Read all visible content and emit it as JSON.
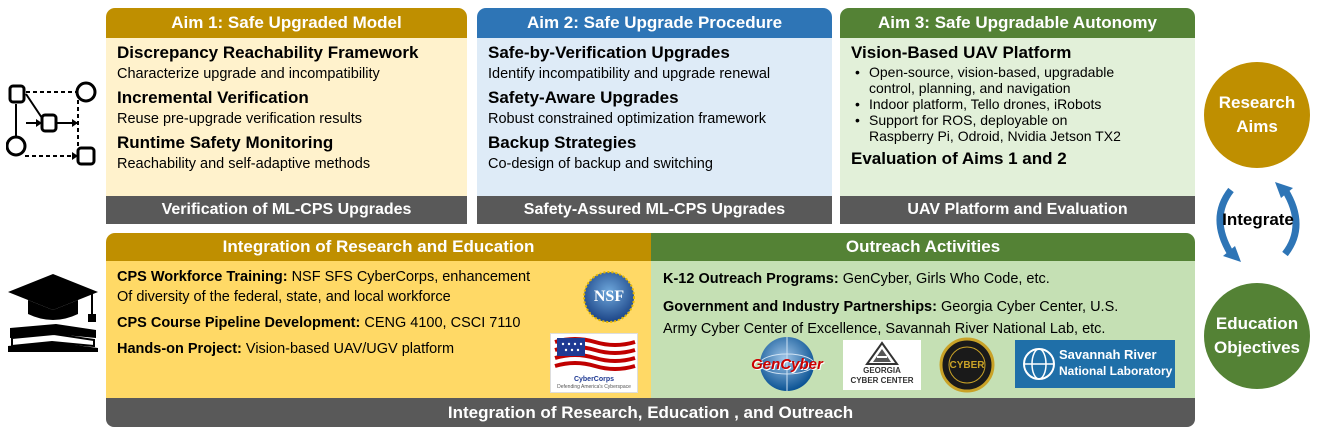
{
  "aims": [
    {
      "header": "Aim 1: Safe Upgraded Model",
      "items": [
        {
          "title": "Discrepancy Reachability Framework",
          "desc": "Characterize upgrade and incompatibility"
        },
        {
          "title": "Incremental Verification",
          "desc": "Reuse pre-upgrade verification results"
        },
        {
          "title": "Runtime Safety Monitoring",
          "desc": "Reachability and self-adaptive methods"
        }
      ],
      "footer": "Verification of ML-CPS Upgrades"
    },
    {
      "header": "Aim 2: Safe Upgrade Procedure",
      "items": [
        {
          "title": "Safe-by-Verification Upgrades",
          "desc": "Identify incompatibility and upgrade renewal"
        },
        {
          "title": "Safety-Aware Upgrades",
          "desc": "Robust constrained optimization framework"
        },
        {
          "title": "Backup Strategies",
          "desc": "Co-design of backup and switching"
        }
      ],
      "footer": "Safety-Assured ML-CPS Upgrades"
    },
    {
      "header": "Aim 3: Safe Upgradable Autonomy",
      "title": "Vision-Based UAV Platform",
      "bullets": [
        [
          "Open-source, vision-based, upgradable",
          "control, planning, and navigation"
        ],
        [
          "Indoor platform, Tello drones, iRobots"
        ],
        [
          "Support for ROS, deployable on",
          "Raspberry Pi, Odroid, Nvidia Jetson TX2"
        ]
      ],
      "title2": "Evaluation of Aims 1 and 2",
      "footer": "UAV Platform and Evaluation"
    }
  ],
  "integration": {
    "header": "Integration of Research and Education",
    "lines": [
      {
        "bold": "CPS Workforce Training:",
        "text": " NSF SFS CyberCorps, enhancement"
      },
      {
        "bold": "",
        "text": "Of diversity of the federal, state, and local workforce"
      },
      {
        "bold": "CPS Course Pipeline Development:",
        "text": " CENG 4100, CSCI 7110"
      },
      {
        "bold": "Hands-on Project:",
        "text": " Vision-based UAV/UGV platform"
      }
    ],
    "nsf_logo_text": "NSF",
    "cybercorps_text": "CyberCorps",
    "cybercorps_tagline": "Defending America's Cyberspace"
  },
  "outreach": {
    "header": "Outreach Activities",
    "lines": [
      {
        "bold": "K-12 Outreach Programs:",
        "text": " GenCyber, Girls Who Code, etc."
      },
      {
        "bold": "Government and Industry Partnerships:",
        "text": " Georgia Cyber Center, U.S."
      },
      {
        "bold": "",
        "text": "Army Cyber Center of Excellence, Savannah River National Lab, etc."
      }
    ],
    "logos": {
      "gencyber": "GenCyber",
      "georgia_line1": "GEORGIA",
      "georgia_line2": "CYBER CENTER",
      "army": "CYBER",
      "srnl_line1": "Savannah River",
      "srnl_line2": "National Laboratory"
    }
  },
  "bottom_bar": "Integration of Research, Education , and Outreach",
  "circles": {
    "research_line1": "Research",
    "research_line2": "Aims",
    "integrate": "Integrate",
    "education_line1": "Education",
    "education_line2": "Objectives"
  },
  "colors": {
    "gold": "#bf8f00",
    "gold_light": "#fff2cc",
    "gold_mid": "#ffd966",
    "blue": "#2e75b6",
    "blue_light": "#deebf7",
    "green": "#548235",
    "green_light": "#e2f0d9",
    "green_mid": "#c5e0b4",
    "gray": "#595959"
  }
}
